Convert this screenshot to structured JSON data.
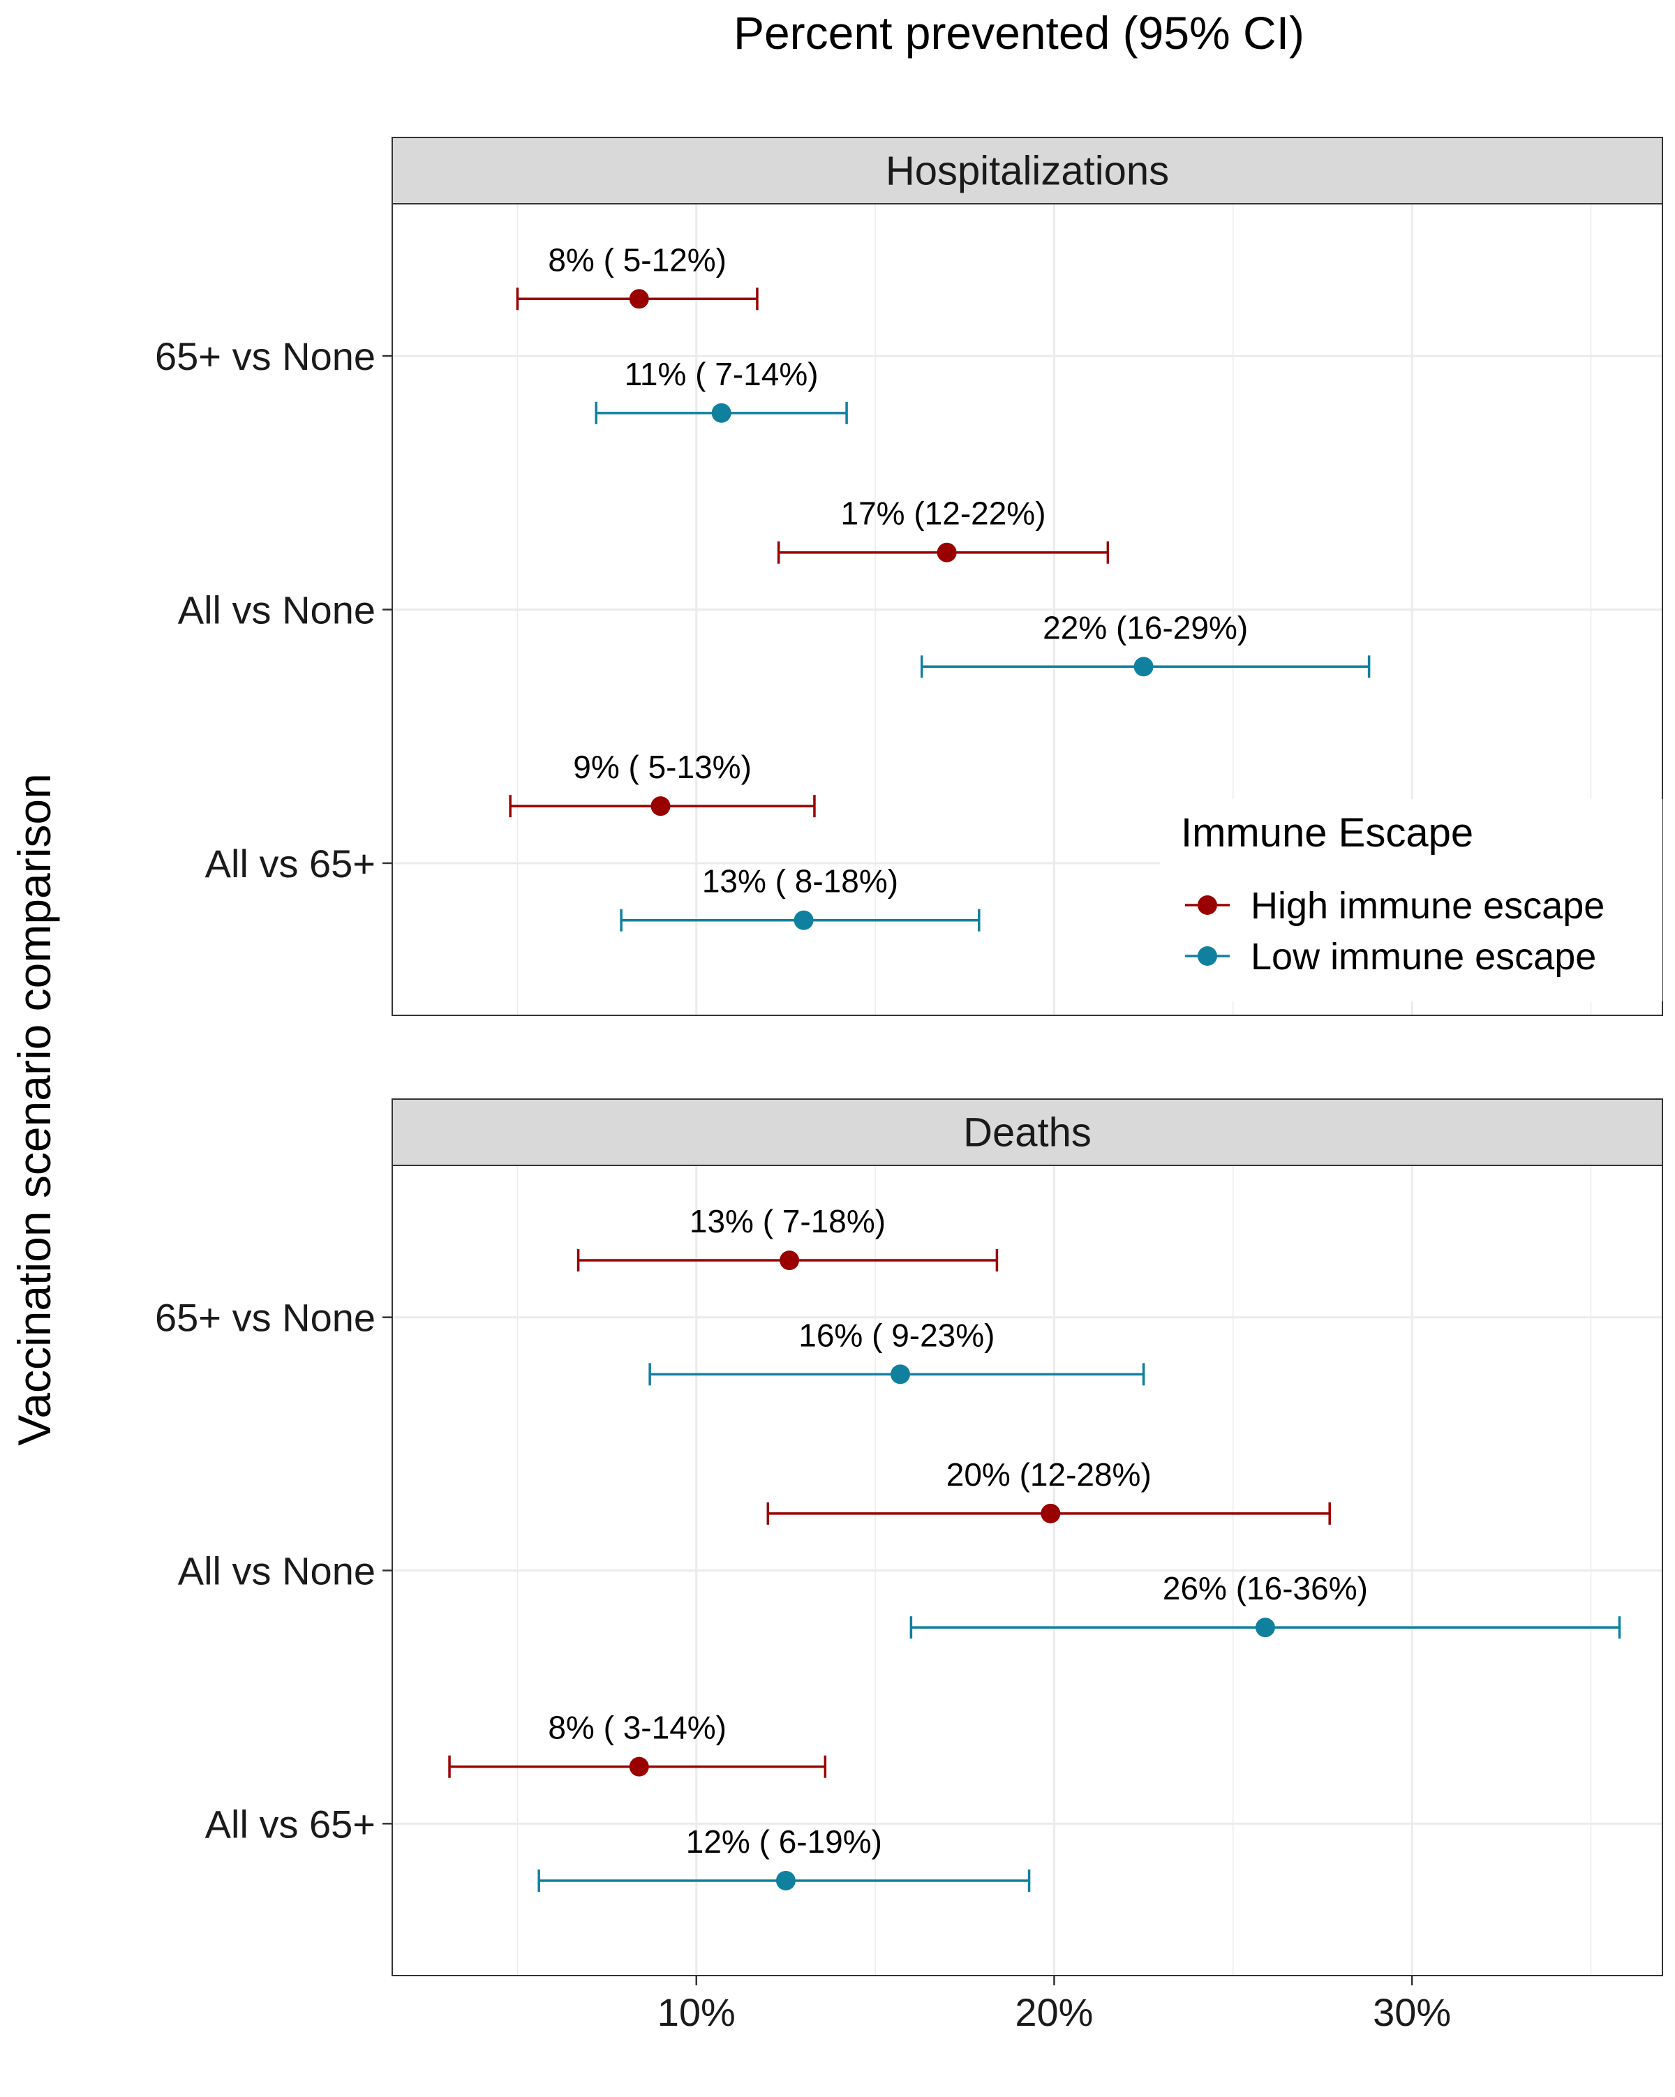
{
  "chart_data": {
    "type": "errorbar",
    "title": "Percent prevented (95% CI)",
    "ylabel": "Vaccination scenario comparison",
    "xlabel": "",
    "xlim": [
      1.5,
      37.0
    ],
    "x_ticks": [
      10,
      20,
      30
    ],
    "x_tick_labels": [
      "10%",
      "20%",
      "30%"
    ],
    "x_minor_ticks": [
      5,
      15,
      25,
      35
    ],
    "grid": true,
    "categories": [
      "65+ vs None",
      "All vs None",
      "All vs 65+"
    ],
    "legend": {
      "title": "Immune Escape",
      "position": "inside-right (top panel)",
      "entries": [
        {
          "label": "High immune escape",
          "color": "#990000"
        },
        {
          "label": "Low immune escape",
          "color": "#10809f"
        }
      ]
    },
    "colors": {
      "High immune escape": "#990000",
      "Low immune escape": "#10809f"
    },
    "panels": [
      {
        "title": "Hospitalizations",
        "series": [
          {
            "name": "High immune escape",
            "points": [
              {
                "category": "65+ vs None",
                "value": 8.4,
                "lower": 5.0,
                "upper": 11.7,
                "label": "8% ( 5-12%)"
              },
              {
                "category": "All vs None",
                "value": 17.0,
                "lower": 12.3,
                "upper": 21.5,
                "label": "17% (12-22%)"
              },
              {
                "category": "All vs 65+",
                "value": 9.0,
                "lower": 4.8,
                "upper": 13.3,
                "label": "9% ( 5-13%)"
              }
            ]
          },
          {
            "name": "Low immune escape",
            "points": [
              {
                "category": "65+ vs None",
                "value": 10.7,
                "lower": 7.2,
                "upper": 14.2,
                "label": "11% ( 7-14%)"
              },
              {
                "category": "All vs None",
                "value": 22.5,
                "lower": 16.3,
                "upper": 28.8,
                "label": "22% (16-29%)"
              },
              {
                "category": "All vs 65+",
                "value": 13.0,
                "lower": 7.9,
                "upper": 17.9,
                "label": "13% ( 8-18%)"
              }
            ]
          }
        ]
      },
      {
        "title": "Deaths",
        "series": [
          {
            "name": "High immune escape",
            "points": [
              {
                "category": "65+ vs None",
                "value": 12.6,
                "lower": 6.7,
                "upper": 18.4,
                "label": "13% ( 7-18%)"
              },
              {
                "category": "All vs None",
                "value": 19.9,
                "lower": 12.0,
                "upper": 27.7,
                "label": "20% (12-28%)"
              },
              {
                "category": "All vs 65+",
                "value": 8.4,
                "lower": 3.1,
                "upper": 13.6,
                "label": "8% ( 3-14%)"
              }
            ]
          },
          {
            "name": "Low immune escape",
            "points": [
              {
                "category": "65+ vs None",
                "value": 15.7,
                "lower": 8.7,
                "upper": 22.5,
                "label": "16% ( 9-23%)"
              },
              {
                "category": "All vs None",
                "value": 25.9,
                "lower": 16.0,
                "upper": 35.8,
                "label": "26% (16-36%)"
              },
              {
                "category": "All vs 65+",
                "value": 12.5,
                "lower": 5.6,
                "upper": 19.3,
                "label": "12% ( 6-19%)"
              }
            ]
          }
        ]
      }
    ]
  }
}
